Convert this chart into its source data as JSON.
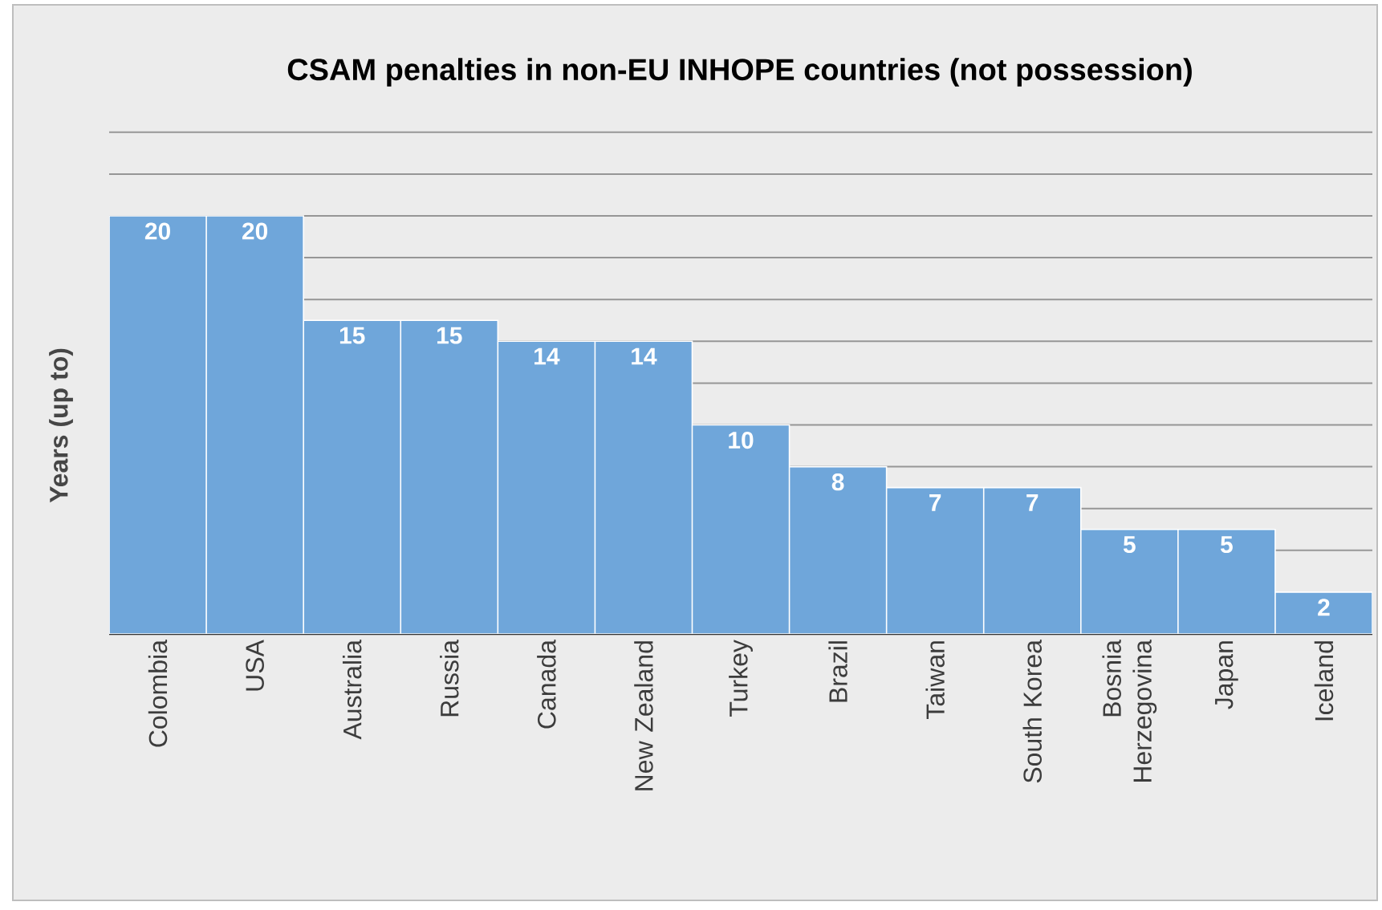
{
  "chart_data": {
    "type": "bar",
    "title": "CSAM penalties in non-EU INHOPE countries (not possession)",
    "ylabel": "Years  (up to)",
    "categories": [
      "Colombia",
      "USA",
      "Australia",
      "Russia",
      "Canada",
      "New Zealand",
      "Turkey",
      "Brazil",
      "Taiwan",
      "South Korea",
      "Bosnia Herzegovina",
      "Japan",
      "Iceland"
    ],
    "values": [
      20,
      20,
      15,
      15,
      14,
      14,
      10,
      8,
      7,
      7,
      5,
      5,
      2
    ],
    "color": "#6fa6da",
    "tick_labels": "x",
    "grid": "y",
    "data_labels": true
  }
}
